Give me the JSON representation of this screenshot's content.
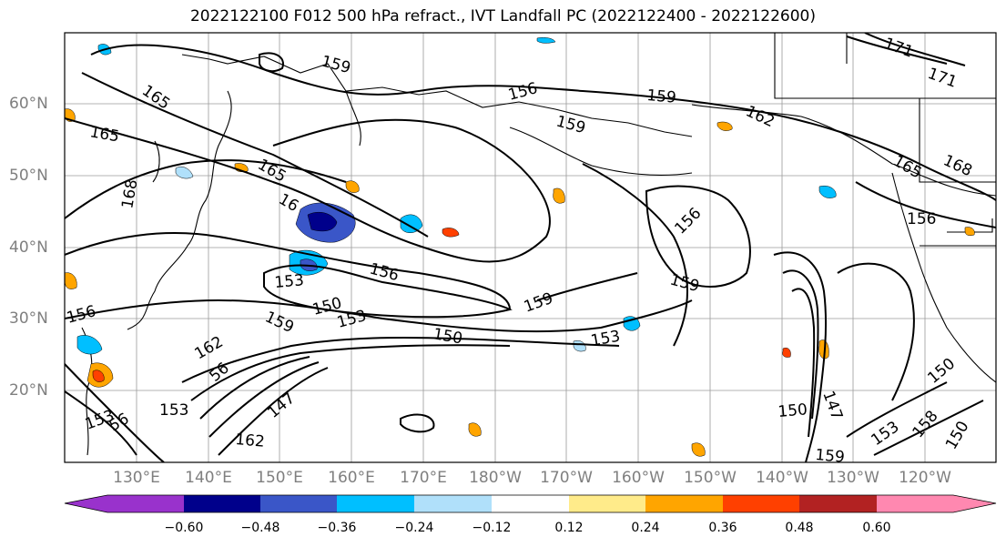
{
  "title": "2022122100 F012 500 hPa refract., IVT Landfall PC (2022122400 - 2022122600)",
  "lat_labels": [
    "60°N",
    "50°N",
    "40°N",
    "30°N",
    "20°N"
  ],
  "lon_labels": [
    "130°E",
    "140°E",
    "150°E",
    "160°E",
    "170°E",
    "180°W",
    "170°W",
    "160°W",
    "150°W",
    "140°W",
    "130°W",
    "120°W"
  ],
  "contour_labels": [
    "159",
    "165",
    "156",
    "159",
    "162",
    "171",
    "171",
    "165",
    "159",
    "165",
    "168",
    "168",
    "165",
    "156",
    "156",
    "16",
    "156",
    "153",
    "159",
    "159",
    "150",
    "159",
    "150",
    "153",
    "162",
    "56",
    "147",
    "153",
    "153",
    "162",
    "56",
    "153",
    "150",
    "147",
    "150",
    "153",
    "156",
    "159",
    "150",
    "158"
  ],
  "colorbar": {
    "ticks": [
      "−0.60",
      "−0.48",
      "−0.36",
      "−0.24",
      "−0.12",
      "0.12",
      "0.24",
      "0.36",
      "0.48",
      "0.60"
    ],
    "colors": [
      "#9932cc",
      "#00008b",
      "#3a56c8",
      "#00bfff",
      "#b0e0fa",
      "#ffffff",
      "#ffeb8a",
      "#ffa500",
      "#ff4000",
      "#b22222",
      "#ff88b0"
    ]
  }
}
